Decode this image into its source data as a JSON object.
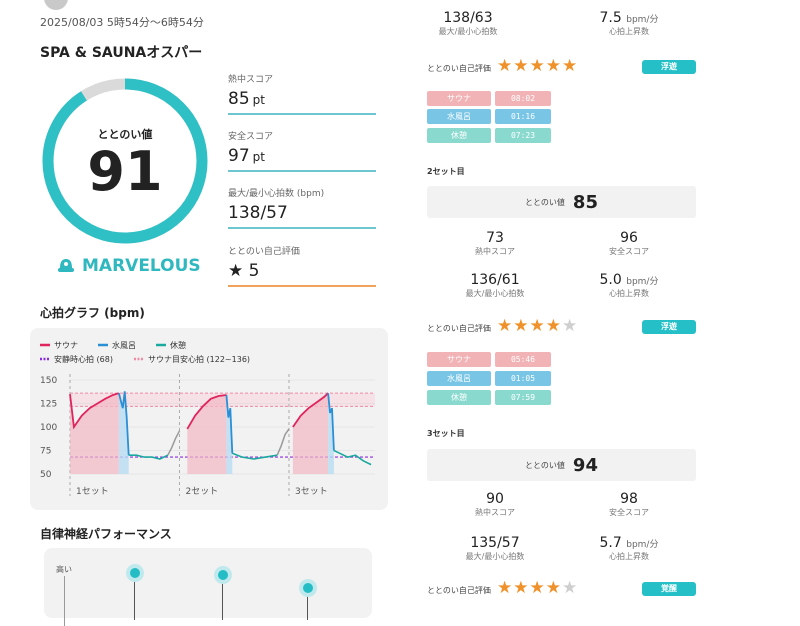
{
  "header": {
    "date_line": "2025/08/03 5時54分〜6時54分",
    "spa_name": "SPA & SAUNAオスパー"
  },
  "gauge": {
    "label": "ととのい値",
    "value": "91",
    "fraction": 0.91,
    "track_color": "#2ec0c5",
    "rest_color": "#dadada"
  },
  "rank": {
    "icon": "sauna-hat-icon",
    "label": "MARVELOUS",
    "color": "#2fb8bf"
  },
  "metrics": [
    {
      "label": "熱中スコア",
      "value": "85",
      "unit": "pt"
    },
    {
      "label": "安全スコア",
      "value": "97",
      "unit": "pt"
    },
    {
      "label": "最大/最小心拍数 (bpm)",
      "value": "138/57",
      "unit": ""
    },
    {
      "label": "ととのい自己評価",
      "value": "5",
      "unit": "",
      "icon": "star-icon"
    }
  ],
  "graph": {
    "title": "心拍グラフ (bpm)",
    "legend": {
      "sauna": "サウナ",
      "cold": "水風呂",
      "rest": "休憩",
      "resting": "安静時心拍 (68)",
      "target": "サウナ目安心拍 (122~136)"
    },
    "colors": {
      "sauna": "#e0245e",
      "cold": "#2b8fd6",
      "rest": "#1ba89f",
      "resting": "#8b2be2",
      "target": "#f08aa4",
      "transition": "#9a9a9a"
    },
    "y_ticks": [
      "150",
      "125",
      "100",
      "75",
      "50"
    ],
    "set_labels": [
      "1セット",
      "2セット",
      "3セット"
    ]
  },
  "chart_data": {
    "type": "line",
    "title": "心拍グラフ (bpm)",
    "ylim": [
      50,
      150
    ],
    "resting_hr": 68,
    "target_range": [
      122,
      136
    ],
    "sets": [
      {
        "name": "1セット",
        "sauna": [
          [
            0,
            135
          ],
          [
            1,
            100
          ],
          [
            3,
            112
          ],
          [
            5,
            120
          ],
          [
            7,
            125
          ],
          [
            9,
            130
          ],
          [
            11,
            134
          ],
          [
            12.5,
            136
          ]
        ],
        "cold": [
          [
            12.5,
            136
          ],
          [
            13,
            128
          ],
          [
            13.5,
            120
          ],
          [
            14,
            138
          ],
          [
            14.5,
            110
          ],
          [
            15,
            70
          ]
        ],
        "rest": [
          [
            15,
            70
          ],
          [
            17,
            70
          ],
          [
            19,
            68
          ],
          [
            21,
            68
          ],
          [
            23,
            66
          ],
          [
            25,
            70
          ]
        ],
        "transition": [
          [
            25,
            70
          ],
          [
            26,
            78
          ],
          [
            27,
            88
          ],
          [
            28,
            96
          ]
        ]
      },
      {
        "name": "2セット",
        "sauna": [
          [
            30,
            98
          ],
          [
            32,
            112
          ],
          [
            34,
            122
          ],
          [
            36,
            130
          ],
          [
            38,
            133
          ],
          [
            40,
            134
          ]
        ],
        "cold": [
          [
            40,
            134
          ],
          [
            40.5,
            110
          ],
          [
            41,
            120
          ],
          [
            41.5,
            72
          ]
        ],
        "rest": [
          [
            41.5,
            72
          ],
          [
            44,
            68
          ],
          [
            47,
            66
          ],
          [
            50,
            68
          ],
          [
            53,
            70
          ]
        ],
        "transition": [
          [
            53,
            70
          ],
          [
            54,
            80
          ],
          [
            55,
            92
          ],
          [
            56,
            98
          ]
        ]
      },
      {
        "name": "3セット",
        "sauna": [
          [
            57,
            100
          ],
          [
            59,
            112
          ],
          [
            61,
            120
          ],
          [
            63,
            126
          ],
          [
            65,
            132
          ],
          [
            66,
            136
          ]
        ],
        "cold": [
          [
            66,
            136
          ],
          [
            66.5,
            115
          ],
          [
            67,
            120
          ],
          [
            67.5,
            75
          ]
        ],
        "rest": [
          [
            67.5,
            75
          ],
          [
            69,
            72
          ],
          [
            71,
            68
          ],
          [
            73,
            70
          ],
          [
            75,
            64
          ],
          [
            77,
            60
          ]
        ]
      }
    ]
  },
  "autonomic": {
    "title": "自律神経パフォーマンス",
    "y_label": "高い"
  },
  "right": {
    "set1_stats": {
      "maxmin": "138/63",
      "maxmin_label": "最大/最小心拍数",
      "rise": "7.5",
      "rise_unit": "bpm/分",
      "rise_label": "心拍上昇数"
    },
    "set1_rating": {
      "label": "ととのい自己評価",
      "stars": 5,
      "badge": "浮遊"
    },
    "set1_times": [
      {
        "tag": "サウナ",
        "time": "08:02",
        "kind": "sauna"
      },
      {
        "tag": "水風呂",
        "time": "01:16",
        "kind": "cold"
      },
      {
        "tag": "休憩",
        "time": "07:23",
        "kind": "rest"
      }
    ],
    "set2": {
      "label": "2セット目",
      "tt_label": "ととのい値",
      "tt_value": "85",
      "heat": "73",
      "heat_label": "熱中スコア",
      "safety": "96",
      "safety_label": "安全スコア",
      "maxmin": "136/61",
      "maxmin_label": "最大/最小心拍数",
      "rise": "5.0",
      "rise_unit": "bpm/分",
      "rise_label": "心拍上昇数",
      "rating_label": "ととのい自己評価",
      "stars": 4,
      "badge": "浮遊",
      "times": [
        {
          "tag": "サウナ",
          "time": "05:46",
          "kind": "sauna"
        },
        {
          "tag": "水風呂",
          "time": "01:05",
          "kind": "cold"
        },
        {
          "tag": "休憩",
          "time": "07:59",
          "kind": "rest"
        }
      ]
    },
    "set3": {
      "label": "3セット目",
      "tt_label": "ととのい値",
      "tt_value": "94",
      "heat": "90",
      "heat_label": "熱中スコア",
      "safety": "98",
      "safety_label": "安全スコア",
      "maxmin": "135/57",
      "maxmin_label": "最大/最小心拍数",
      "rise": "5.7",
      "rise_unit": "bpm/分",
      "rise_label": "心拍上昇数",
      "rating_label": "ととのい自己評価",
      "stars": 4,
      "badge": "覚醒"
    }
  }
}
